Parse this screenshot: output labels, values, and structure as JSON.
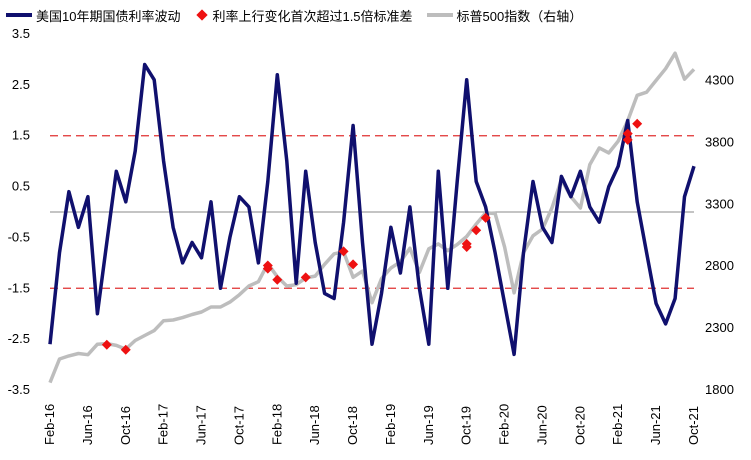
{
  "chart_data": {
    "type": "line",
    "title": "",
    "xlabel": "",
    "ylabel_left": "",
    "ylabel_right": "",
    "x_range": [
      "2016-02",
      "2021-10"
    ],
    "x_ticks": [
      "Feb-16",
      "Jun-16",
      "Oct-16",
      "Feb-17",
      "Jun-17",
      "Oct-17",
      "Feb-18",
      "Jun-18",
      "Oct-18",
      "Feb-19",
      "Jun-19",
      "Oct-19",
      "Feb-20",
      "Jun-20",
      "Oct-20",
      "Feb-21",
      "Jun-21",
      "Oct-21"
    ],
    "ylim_left": [
      -3.5,
      3.5
    ],
    "yticks_left": [
      "3.5",
      "2.5",
      "1.5",
      "0.5",
      "-0.5",
      "-1.5",
      "-2.5",
      "-3.5"
    ],
    "ylim_right": [
      1800,
      4675
    ],
    "yticks_right": [
      "4300",
      "3800",
      "3300",
      "2800",
      "2300",
      "1800"
    ],
    "reference_lines": [
      1.5,
      -1.5,
      0
    ],
    "grid": false,
    "legend_position": "top",
    "series": [
      {
        "name": "美国10年期国债利率波动",
        "axis": "left",
        "color": "#10106e",
        "points": [
          [
            "2016-02",
            -2.6
          ],
          [
            "2016-03",
            -0.8
          ],
          [
            "2016-04",
            0.4
          ],
          [
            "2016-05",
            -0.3
          ],
          [
            "2016-06",
            0.3
          ],
          [
            "2016-07",
            -2.0
          ],
          [
            "2016-08",
            -0.6
          ],
          [
            "2016-09",
            0.8
          ],
          [
            "2016-10",
            0.2
          ],
          [
            "2016-11",
            1.2
          ],
          [
            "2016-12",
            2.9
          ],
          [
            "2017-01",
            2.6
          ],
          [
            "2017-02",
            1.0
          ],
          [
            "2017-03",
            -0.3
          ],
          [
            "2017-04",
            -1.0
          ],
          [
            "2017-05",
            -0.6
          ],
          [
            "2017-06",
            -0.9
          ],
          [
            "2017-07",
            0.2
          ],
          [
            "2017-08",
            -1.5
          ],
          [
            "2017-09",
            -0.5
          ],
          [
            "2017-10",
            0.3
          ],
          [
            "2017-11",
            0.1
          ],
          [
            "2017-12",
            -1.0
          ],
          [
            "2018-01",
            0.6
          ],
          [
            "2018-02",
            2.7
          ],
          [
            "2018-03",
            1.0
          ],
          [
            "2018-04",
            -1.4
          ],
          [
            "2018-05",
            0.8
          ],
          [
            "2018-06",
            -0.6
          ],
          [
            "2018-07",
            -1.6
          ],
          [
            "2018-08",
            -1.7
          ],
          [
            "2018-09",
            -0.2
          ],
          [
            "2018-10",
            1.7
          ],
          [
            "2018-11",
            -0.6
          ],
          [
            "2018-12",
            -2.6
          ],
          [
            "2019-01",
            -1.6
          ],
          [
            "2019-02",
            -0.3
          ],
          [
            "2019-03",
            -1.2
          ],
          [
            "2019-04",
            0.1
          ],
          [
            "2019-05",
            -1.5
          ],
          [
            "2019-06",
            -2.6
          ],
          [
            "2019-07",
            0.8
          ],
          [
            "2019-08",
            -1.5
          ],
          [
            "2019-09",
            0.6
          ],
          [
            "2019-10",
            2.6
          ],
          [
            "2019-11",
            0.6
          ],
          [
            "2019-12",
            0.1
          ],
          [
            "2020-01",
            -0.8
          ],
          [
            "2020-02",
            -1.8
          ],
          [
            "2020-03",
            -2.8
          ],
          [
            "2020-04",
            -0.8
          ],
          [
            "2020-05",
            0.6
          ],
          [
            "2020-06",
            -0.3
          ],
          [
            "2020-07",
            -0.6
          ],
          [
            "2020-08",
            0.7
          ],
          [
            "2020-09",
            0.3
          ],
          [
            "2020-10",
            0.8
          ],
          [
            "2020-11",
            0.1
          ],
          [
            "2020-12",
            -0.2
          ],
          [
            "2021-01",
            0.5
          ],
          [
            "2021-02",
            0.9
          ],
          [
            "2021-03",
            1.8
          ],
          [
            "2021-04",
            0.2
          ],
          [
            "2021-05",
            -0.8
          ],
          [
            "2021-06",
            -1.8
          ],
          [
            "2021-07",
            -2.2
          ],
          [
            "2021-08",
            -1.7
          ],
          [
            "2021-09",
            0.3
          ],
          [
            "2021-10",
            0.9
          ]
        ]
      },
      {
        "name": "利率上行变化首次超过1.5倍标准差",
        "axis": "right",
        "color": "#ee1111",
        "marker": "diamond",
        "points": [
          [
            "2016-08",
            2165
          ],
          [
            "2016-10",
            2125
          ],
          [
            "2018-01",
            2780
          ],
          [
            "2018-01",
            2805
          ],
          [
            "2018-02",
            2690
          ],
          [
            "2018-05",
            2710
          ],
          [
            "2018-09",
            2920
          ],
          [
            "2018-10",
            2815
          ],
          [
            "2019-10",
            2980
          ],
          [
            "2019-10",
            2955
          ],
          [
            "2019-11",
            3090
          ],
          [
            "2019-12",
            3190
          ],
          [
            "2021-03",
            3870
          ],
          [
            "2021-03",
            3820
          ],
          [
            "2021-04",
            3950
          ]
        ]
      },
      {
        "name": "标普500指数（右轴）",
        "axis": "right",
        "color": "#bdbdbd",
        "points": [
          [
            "2016-02",
            1860
          ],
          [
            "2016-03",
            2050
          ],
          [
            "2016-04",
            2075
          ],
          [
            "2016-05",
            2095
          ],
          [
            "2016-06",
            2085
          ],
          [
            "2016-07",
            2170
          ],
          [
            "2016-08",
            2175
          ],
          [
            "2016-09",
            2160
          ],
          [
            "2016-10",
            2130
          ],
          [
            "2016-11",
            2200
          ],
          [
            "2016-12",
            2240
          ],
          [
            "2017-01",
            2280
          ],
          [
            "2017-02",
            2360
          ],
          [
            "2017-03",
            2365
          ],
          [
            "2017-04",
            2385
          ],
          [
            "2017-05",
            2410
          ],
          [
            "2017-06",
            2430
          ],
          [
            "2017-07",
            2470
          ],
          [
            "2017-08",
            2470
          ],
          [
            "2017-09",
            2510
          ],
          [
            "2017-10",
            2570
          ],
          [
            "2017-11",
            2640
          ],
          [
            "2017-12",
            2675
          ],
          [
            "2018-01",
            2820
          ],
          [
            "2018-02",
            2715
          ],
          [
            "2018-03",
            2640
          ],
          [
            "2018-04",
            2650
          ],
          [
            "2018-05",
            2705
          ],
          [
            "2018-06",
            2720
          ],
          [
            "2018-07",
            2815
          ],
          [
            "2018-08",
            2900
          ],
          [
            "2018-09",
            2915
          ],
          [
            "2018-10",
            2710
          ],
          [
            "2018-11",
            2760
          ],
          [
            "2018-12",
            2505
          ],
          [
            "2019-01",
            2700
          ],
          [
            "2019-02",
            2785
          ],
          [
            "2019-03",
            2835
          ],
          [
            "2019-04",
            2945
          ],
          [
            "2019-05",
            2750
          ],
          [
            "2019-06",
            2940
          ],
          [
            "2019-07",
            2980
          ],
          [
            "2019-08",
            2925
          ],
          [
            "2019-09",
            2975
          ],
          [
            "2019-10",
            3040
          ],
          [
            "2019-11",
            3140
          ],
          [
            "2019-12",
            3230
          ],
          [
            "2020-01",
            3225
          ],
          [
            "2020-02",
            2955
          ],
          [
            "2020-03",
            2585
          ],
          [
            "2020-04",
            2910
          ],
          [
            "2020-05",
            3045
          ],
          [
            "2020-06",
            3100
          ],
          [
            "2020-07",
            3270
          ],
          [
            "2020-08",
            3500
          ],
          [
            "2020-09",
            3360
          ],
          [
            "2020-10",
            3270
          ],
          [
            "2020-11",
            3620
          ],
          [
            "2020-12",
            3755
          ],
          [
            "2021-01",
            3715
          ],
          [
            "2021-02",
            3810
          ],
          [
            "2021-03",
            3975
          ],
          [
            "2021-04",
            4180
          ],
          [
            "2021-05",
            4205
          ],
          [
            "2021-06",
            4300
          ],
          [
            "2021-07",
            4395
          ],
          [
            "2021-08",
            4520
          ],
          [
            "2021-09",
            4310
          ],
          [
            "2021-10",
            4390
          ]
        ]
      }
    ]
  }
}
